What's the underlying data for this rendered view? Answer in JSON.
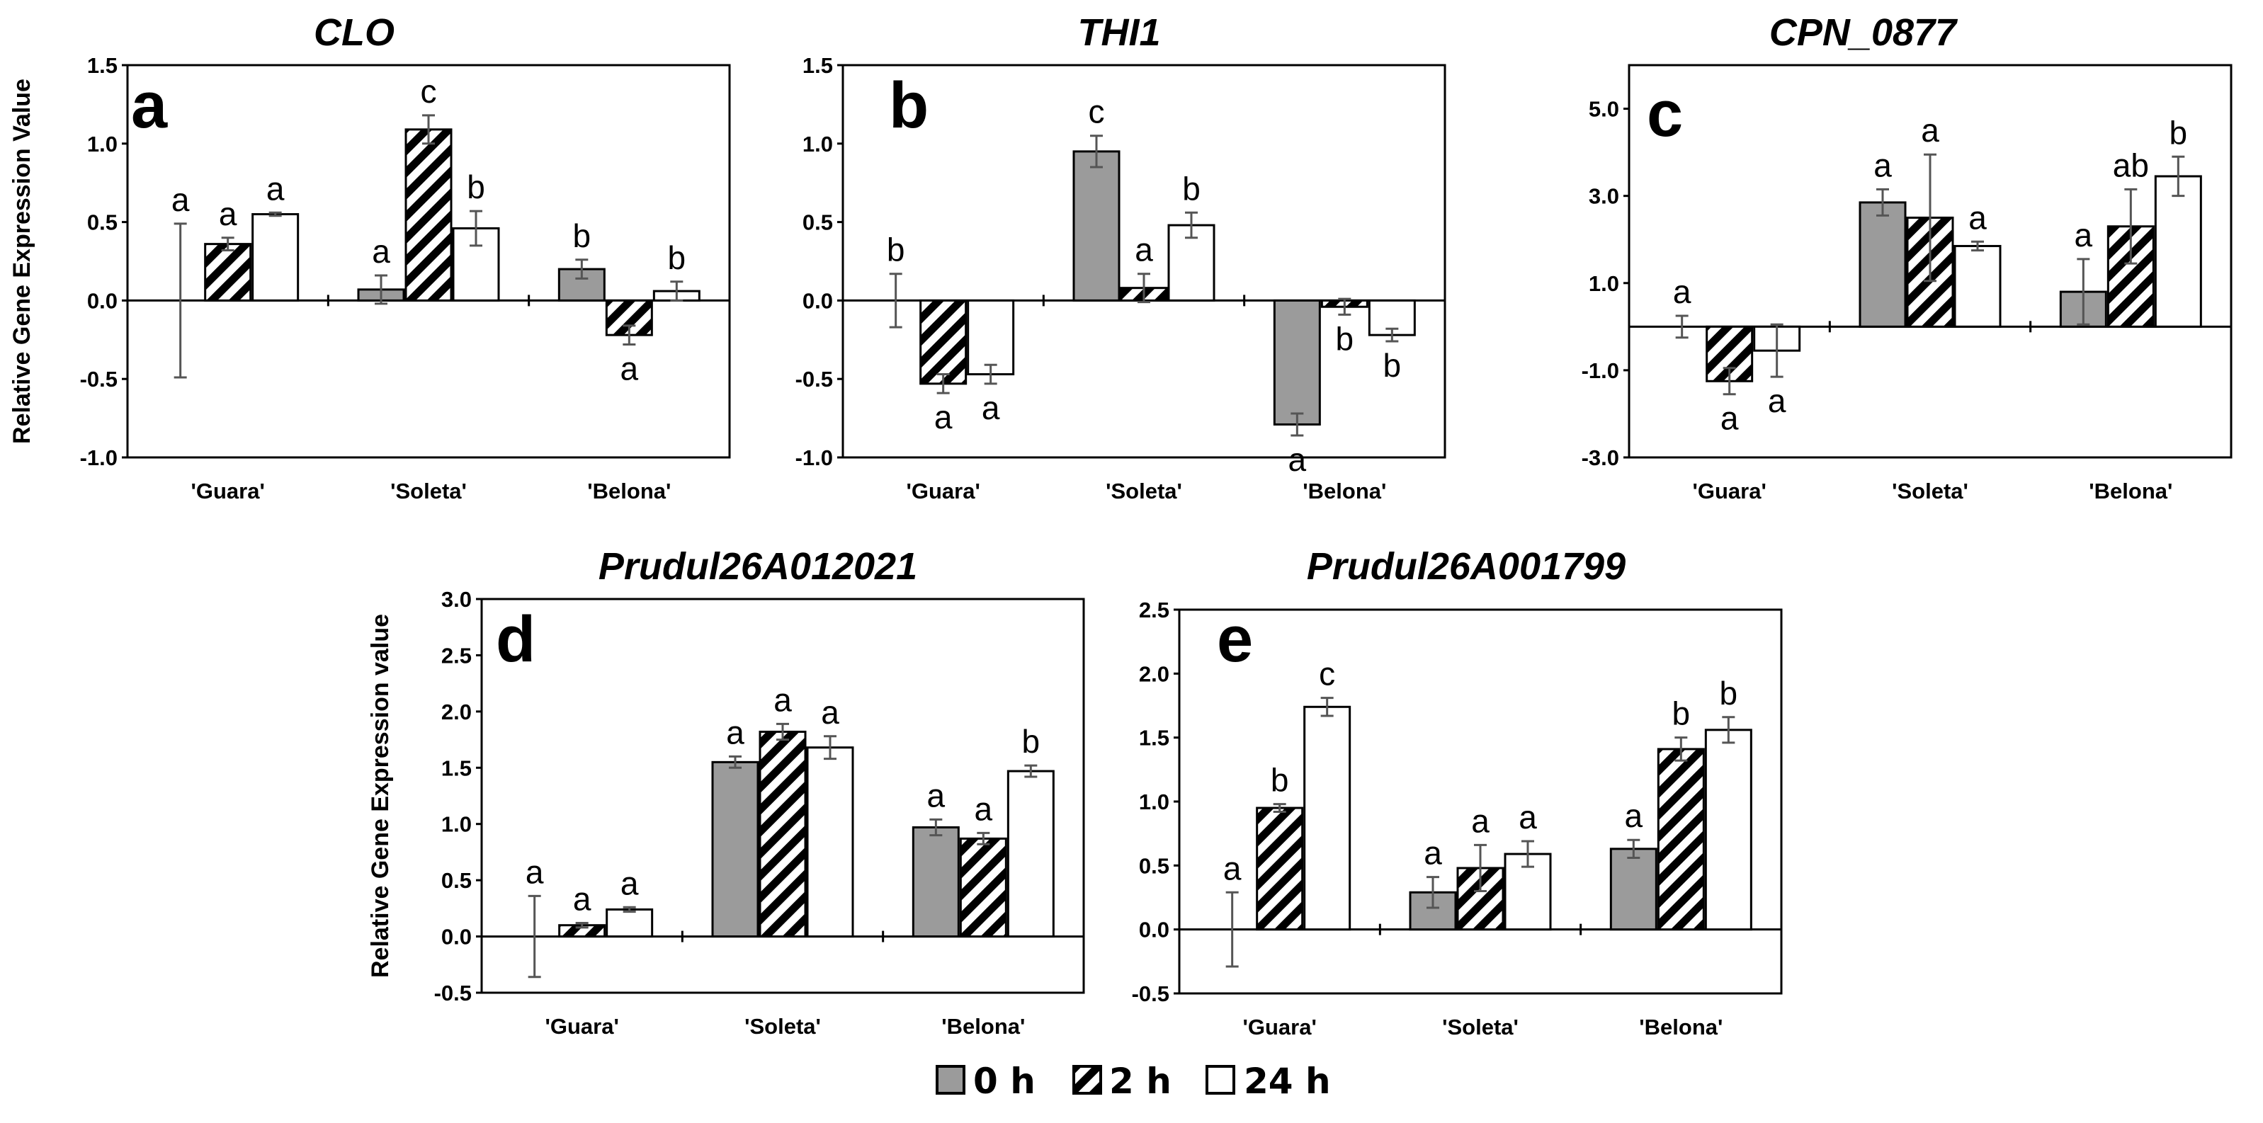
{
  "legend": [
    {
      "label": "0 h",
      "pattern": "gray"
    },
    {
      "label": "2 h",
      "pattern": "hatch"
    },
    {
      "label": "24 h",
      "pattern": "white"
    }
  ],
  "colors": {
    "gray_bar": "#9b9b9b",
    "axis": "#000000",
    "bar_stroke": "#000000",
    "background": "#ffffff"
  },
  "chart_data": [
    {
      "type": "bar",
      "panel": "a",
      "title": "CLO",
      "ylabel": "Relative Gene Expression Value",
      "categories": [
        "'Guara'",
        "'Soleta'",
        "'Belona'"
      ],
      "ylim": [
        -1.0,
        1.5
      ],
      "yticks": [
        -1.0,
        -0.5,
        0.0,
        0.5,
        1.0,
        1.5
      ],
      "ytick_labels": [
        "-1.0",
        "-0.5",
        "0.0",
        "0.5",
        "1.0",
        "1.5"
      ],
      "series": [
        {
          "name": "0 h",
          "values": [
            0.0,
            0.07,
            0.2
          ],
          "errors": [
            0.49,
            0.09,
            0.06
          ],
          "letters": [
            "a",
            "a",
            "b"
          ]
        },
        {
          "name": "2 h",
          "values": [
            0.36,
            1.09,
            -0.22
          ],
          "errors": [
            0.04,
            0.09,
            0.06
          ],
          "letters": [
            "a",
            "c",
            "a"
          ]
        },
        {
          "name": "24 h",
          "values": [
            0.55,
            0.46,
            0.06
          ],
          "errors": [
            0.01,
            0.11,
            0.06
          ],
          "letters": [
            "a",
            "b",
            "b"
          ]
        }
      ]
    },
    {
      "type": "bar",
      "panel": "b",
      "title": "THI1",
      "ylabel": "",
      "categories": [
        "'Guara'",
        "'Soleta'",
        "'Belona'"
      ],
      "ylim": [
        -1.0,
        1.5
      ],
      "yticks": [
        -1.0,
        -0.5,
        0.0,
        0.5,
        1.0,
        1.5
      ],
      "ytick_labels": [
        "-1.0",
        "-0.5",
        "0.0",
        "0.5",
        "1.0",
        "1.5"
      ],
      "series": [
        {
          "name": "0 h",
          "values": [
            0.0,
            0.95,
            -0.79
          ],
          "errors": [
            0.17,
            0.1,
            0.07
          ],
          "letters": [
            "b",
            "c",
            "a"
          ]
        },
        {
          "name": "2 h",
          "values": [
            -0.53,
            0.08,
            -0.04
          ],
          "errors": [
            0.06,
            0.09,
            0.05
          ],
          "letters": [
            "a",
            "a",
            "b"
          ]
        },
        {
          "name": "24 h",
          "values": [
            -0.47,
            0.48,
            -0.22
          ],
          "errors": [
            0.06,
            0.08,
            0.04
          ],
          "letters": [
            "a",
            "b",
            "b"
          ]
        }
      ]
    },
    {
      "type": "bar",
      "panel": "c",
      "title": "CPN_0877",
      "ylabel": "",
      "categories": [
        "'Guara'",
        "'Soleta'",
        "'Belona'"
      ],
      "ylim": [
        -3.0,
        6.0
      ],
      "yticks": [
        -3.0,
        -1.0,
        1.0,
        3.0,
        5.0
      ],
      "ytick_labels": [
        "-3.0",
        "-1.0",
        "1.0",
        "3.0",
        "5.0"
      ],
      "series": [
        {
          "name": "0 h",
          "values": [
            0.0,
            2.85,
            0.8
          ],
          "errors": [
            0.25,
            0.3,
            0.75
          ],
          "letters": [
            "a",
            "a",
            "a"
          ]
        },
        {
          "name": "2 h",
          "values": [
            -1.25,
            2.5,
            2.3
          ],
          "errors": [
            0.3,
            1.45,
            0.85
          ],
          "letters": [
            "a",
            "a",
            "ab"
          ]
        },
        {
          "name": "24 h",
          "values": [
            -0.55,
            1.85,
            3.45
          ],
          "errors": [
            0.6,
            0.1,
            0.45
          ],
          "letters": [
            "a",
            "a",
            "b"
          ]
        }
      ]
    },
    {
      "type": "bar",
      "panel": "d",
      "title": "Prudul26A012021",
      "ylabel": "Relative Gene Expression value",
      "categories": [
        "'Guara'",
        "'Soleta'",
        "'Belona'"
      ],
      "ylim": [
        -0.5,
        3.0
      ],
      "yticks": [
        -0.5,
        0.0,
        0.5,
        1.0,
        1.5,
        2.0,
        2.5,
        3.0
      ],
      "ytick_labels": [
        "-0.5",
        "0.0",
        "0.5",
        "1.0",
        "1.5",
        "2.0",
        "2.5",
        "3.0"
      ],
      "series": [
        {
          "name": "0 h",
          "values": [
            0.0,
            1.55,
            0.97
          ],
          "errors": [
            0.36,
            0.05,
            0.07
          ],
          "letters": [
            "a",
            "a",
            "a"
          ]
        },
        {
          "name": "2 h",
          "values": [
            0.1,
            1.82,
            0.87
          ],
          "errors": [
            0.02,
            0.07,
            0.05
          ],
          "letters": [
            "a",
            "a",
            "a"
          ]
        },
        {
          "name": "24 h",
          "values": [
            0.24,
            1.68,
            1.47
          ],
          "errors": [
            0.02,
            0.1,
            0.05
          ],
          "letters": [
            "a",
            "a",
            "b"
          ]
        }
      ]
    },
    {
      "type": "bar",
      "panel": "e",
      "title": "Prudul26A001799",
      "ylabel": "",
      "categories": [
        "'Guara'",
        "'Soleta'",
        "'Belona'"
      ],
      "ylim": [
        -0.5,
        2.5
      ],
      "yticks": [
        -0.5,
        0.0,
        0.5,
        1.0,
        1.5,
        2.0,
        2.5
      ],
      "ytick_labels": [
        "-0.5",
        "0.0",
        "0.5",
        "1.0",
        "1.5",
        "2.0",
        "2.5"
      ],
      "series": [
        {
          "name": "0 h",
          "values": [
            0.0,
            0.29,
            0.63
          ],
          "errors": [
            0.29,
            0.12,
            0.07
          ],
          "letters": [
            "a",
            "a",
            "a"
          ]
        },
        {
          "name": "2 h",
          "values": [
            0.95,
            0.48,
            1.41
          ],
          "errors": [
            0.03,
            0.18,
            0.09
          ],
          "letters": [
            "b",
            "a",
            "b"
          ]
        },
        {
          "name": "24 h",
          "values": [
            1.74,
            0.59,
            1.56
          ],
          "errors": [
            0.07,
            0.1,
            0.1
          ],
          "letters": [
            "c",
            "a",
            "b"
          ]
        }
      ]
    }
  ]
}
